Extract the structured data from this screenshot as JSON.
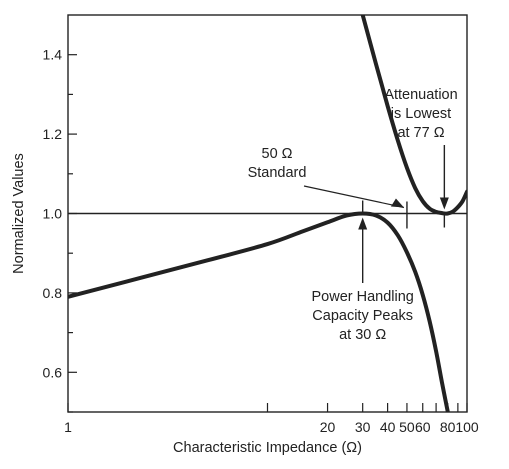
{
  "chart_data": {
    "type": "line",
    "title": "",
    "xlabel": "Characteristic Impedance (Ω)",
    "ylabel": "Normalized Values",
    "x_scale": "log",
    "xlim": [
      1,
      100
    ],
    "ylim": [
      0.5,
      1.5
    ],
    "grid": false,
    "x_ticks": [
      {
        "value": 1,
        "label": "1"
      },
      {
        "value": 20,
        "label": "20"
      },
      {
        "value": 30,
        "label": "30"
      },
      {
        "value": 40,
        "label": "40"
      },
      {
        "value": 50,
        "label": "50"
      },
      {
        "value": 60,
        "label": "60"
      },
      {
        "value": 80,
        "label": "80"
      },
      {
        "value": 100,
        "label": "100"
      }
    ],
    "x_minor_ticks": [
      10,
      70,
      90
    ],
    "y_ticks": [
      {
        "value": 0.6,
        "label": "0.6"
      },
      {
        "value": 0.8,
        "label": "0.8"
      },
      {
        "value": 1.0,
        "label": "1.0"
      },
      {
        "value": 1.2,
        "label": "1.2"
      },
      {
        "value": 1.4,
        "label": "1.4"
      }
    ],
    "y_minor_ticks": [
      0.5,
      0.7,
      0.9,
      1.1,
      1.3
    ],
    "reference_line": {
      "y": 1.0
    },
    "series": [
      {
        "x": [
          1,
          5,
          10,
          15,
          20,
          25,
          30,
          35,
          40,
          45,
          50,
          55,
          60,
          65,
          70,
          75,
          80
        ],
        "y": [
          0.79,
          0.882,
          0.923,
          0.955,
          0.978,
          0.995,
          1.0,
          0.995,
          0.977,
          0.945,
          0.902,
          0.853,
          0.795,
          0.728,
          0.653,
          0.573,
          0.502
        ]
      },
      {
        "x": [
          30,
          35,
          40,
          45,
          50,
          55,
          60,
          65,
          70,
          75,
          77,
          80,
          85,
          90,
          95,
          100
        ],
        "y": [
          1.5,
          1.376,
          1.271,
          1.184,
          1.115,
          1.064,
          1.031,
          1.012,
          1.004,
          1.001,
          1.0,
          1.0,
          1.005,
          1.016,
          1.031,
          1.055
        ]
      }
    ],
    "annotations": [
      {
        "lines": [
          "50 Ω",
          "Standard"
        ],
        "x": 50,
        "y": 1.0
      },
      {
        "lines": [
          "Attenuation",
          "is Lowest",
          "at 77 Ω"
        ],
        "x": 77,
        "y": 1.0
      },
      {
        "lines": [
          "Power Handling",
          "Capacity Peaks",
          "at 30 Ω"
        ],
        "x": 30,
        "y": 1.0
      }
    ]
  }
}
